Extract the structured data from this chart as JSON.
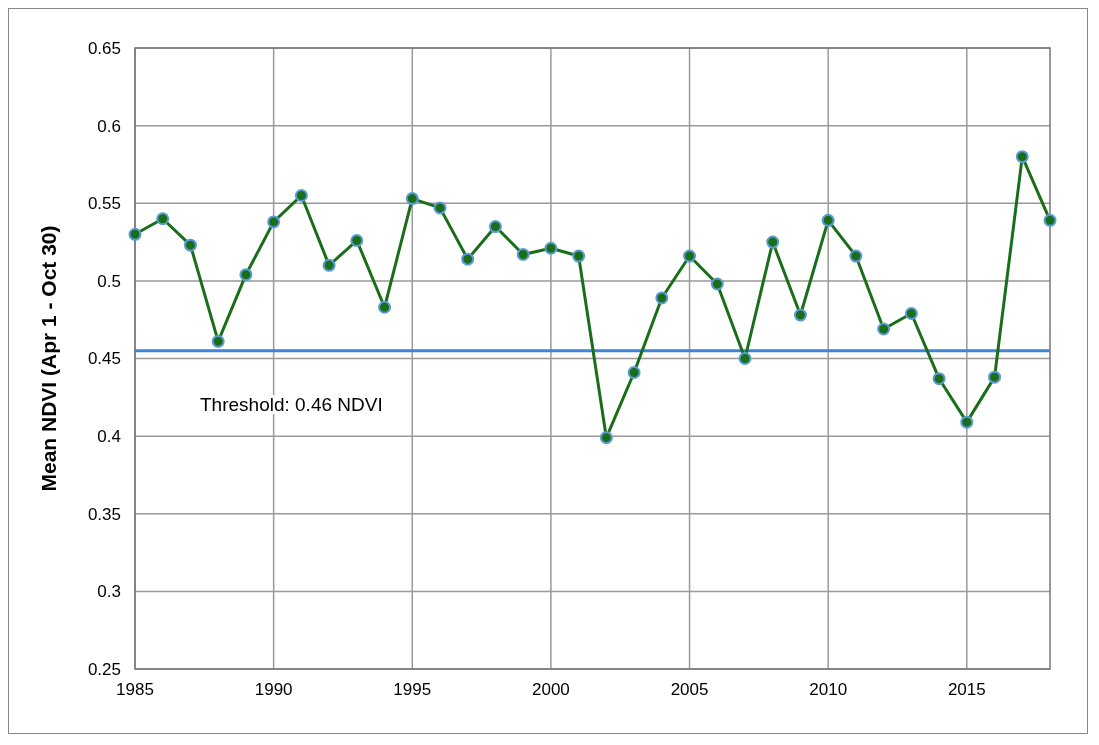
{
  "chart_data": {
    "type": "line",
    "ylabel": "Mean NDVI (Apr 1 - Oct 30)",
    "x": [
      1985,
      1986,
      1987,
      1988,
      1989,
      1990,
      1991,
      1992,
      1993,
      1994,
      1995,
      1996,
      1997,
      1998,
      1999,
      2000,
      2001,
      2002,
      2003,
      2004,
      2005,
      2006,
      2007,
      2008,
      2009,
      2010,
      2011,
      2012,
      2013,
      2014,
      2015,
      2016,
      2017,
      2018
    ],
    "series": [
      {
        "color": "#1a6e1a",
        "values": [
          0.53,
          0.54,
          0.523,
          0.461,
          0.504,
          0.538,
          0.555,
          0.51,
          0.526,
          0.483,
          0.553,
          0.547,
          0.514,
          0.535,
          0.517,
          0.521,
          0.516,
          0.399,
          0.441,
          0.489,
          0.516,
          0.498,
          0.45,
          0.525,
          0.478,
          0.539,
          0.516,
          0.469,
          0.479,
          0.437,
          0.409,
          0.438,
          0.58,
          0.539
        ]
      }
    ],
    "xlim": [
      1985,
      2018
    ],
    "xticks": [
      1985,
      1990,
      1995,
      2000,
      2005,
      2010,
      2015
    ],
    "ylim": [
      0.25,
      0.65
    ],
    "yticks": [
      0.25,
      0.3,
      0.35,
      0.4,
      0.45,
      0.5,
      0.55,
      0.6,
      0.65
    ],
    "ref_lines": [
      {
        "axis": "y",
        "value": 0.455,
        "label": "Threshold: 0.46 NDVI",
        "color": "#3d85d8"
      }
    ],
    "grid": true,
    "marker": "circle",
    "line_style": "solid"
  }
}
